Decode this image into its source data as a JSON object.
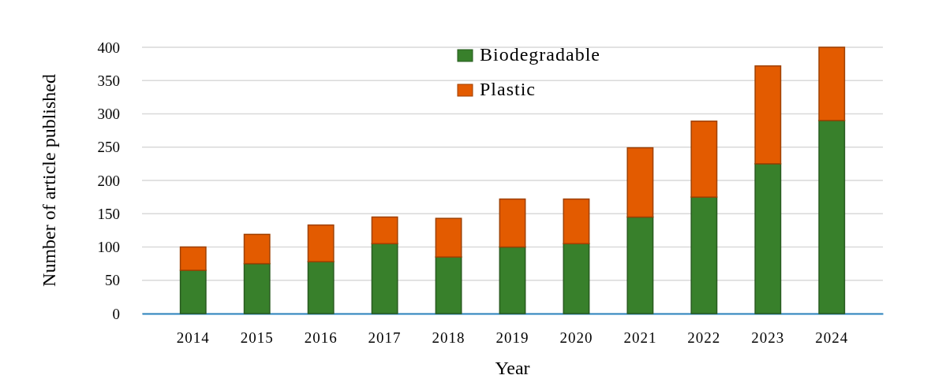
{
  "chart_data": {
    "type": "bar",
    "stacked": true,
    "xlabel": "Year",
    "ylabel": "Number of article published",
    "categories": [
      "2014",
      "2015",
      "2016",
      "2017",
      "2018",
      "2019",
      "2020",
      "2021",
      "2022",
      "2023",
      "2024"
    ],
    "series": [
      {
        "name": "Biodegradable",
        "color": "#38802b",
        "values": [
          65,
          75,
          78,
          105,
          85,
          100,
          105,
          145,
          175,
          225,
          290
        ]
      },
      {
        "name": "Plastic",
        "color": "#e35b00",
        "values": [
          35,
          44,
          55,
          40,
          58,
          72,
          67,
          104,
          114,
          147,
          110
        ]
      }
    ],
    "ylim": [
      0,
      400
    ],
    "yticks": [
      0,
      50,
      100,
      150,
      200,
      250,
      300,
      350,
      400
    ],
    "grid": "y",
    "legend": "top"
  }
}
